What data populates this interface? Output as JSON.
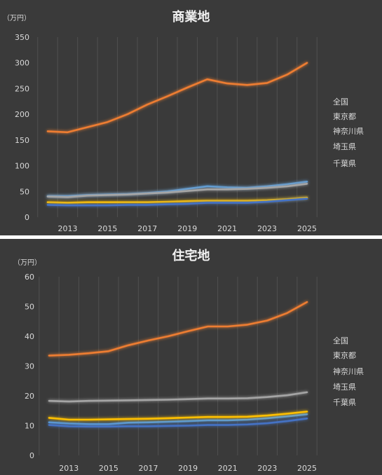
{
  "charts": [
    {
      "title": "商業地",
      "unit": "（万円）",
      "chart_data": {
        "type": "line",
        "title": "商業地",
        "ylabel": "（万円）",
        "xlabel": "",
        "x": [
          2012,
          2013,
          2014,
          2015,
          2016,
          2017,
          2018,
          2019,
          2020,
          2021,
          2022,
          2023,
          2024,
          2025
        ],
        "xticks": [
          "2013",
          "2015",
          "2017",
          "2019",
          "2021",
          "2023",
          "2025"
        ],
        "xtick_values": [
          2013,
          2015,
          2017,
          2019,
          2021,
          2023,
          2025
        ],
        "ylim": [
          0,
          350
        ],
        "yticks": [
          0,
          50,
          100,
          150,
          200,
          250,
          300,
          350
        ],
        "grid": "vertical",
        "legend": "right",
        "series": [
          {
            "name": "全国",
            "color": "#5b9bd5",
            "values": [
              41,
              41,
              43,
              44,
              45,
              47,
              50,
              55,
              60,
              58,
              57,
              60,
              64,
              69
            ]
          },
          {
            "name": "東京都",
            "color": "#ed7d31",
            "values": [
              167,
              165,
              175,
              185,
              200,
              219,
              235,
              252,
              268,
              260,
              257,
              261,
              277,
              300
            ]
          },
          {
            "name": "神奈川県",
            "color": "#a5a5a5",
            "values": [
              40,
              39,
              42,
              43,
              44,
              46,
              48,
              51,
              54,
              54,
              55,
              57,
              60,
              65
            ]
          },
          {
            "name": "埼玉県",
            "color": "#ffc000",
            "values": [
              29,
              28,
              29,
              29,
              29,
              29,
              30,
              31,
              32,
              32,
              32,
              33,
              35,
              38
            ]
          },
          {
            "name": "千葉県",
            "color": "#4472c4",
            "values": [
              24,
              23,
              23,
              23,
              24,
              24,
              25,
              26,
              28,
              28,
              28,
              30,
              33,
              36
            ]
          }
        ]
      }
    },
    {
      "title": "住宅地",
      "unit": "（万円）",
      "chart_data": {
        "type": "line",
        "title": "住宅地",
        "ylabel": "（万円）",
        "xlabel": "",
        "x": [
          2012,
          2013,
          2014,
          2015,
          2016,
          2017,
          2018,
          2019,
          2020,
          2021,
          2022,
          2023,
          2024,
          2025
        ],
        "xticks": [
          "2013",
          "2015",
          "2017",
          "2019",
          "2021",
          "2023",
          "2025"
        ],
        "xtick_values": [
          2013,
          2015,
          2017,
          2019,
          2021,
          2023,
          2025
        ],
        "ylim": [
          0,
          60
        ],
        "yticks": [
          0,
          10,
          20,
          30,
          40,
          50,
          60
        ],
        "grid": "vertical",
        "legend": "right",
        "series": [
          {
            "name": "全国",
            "color": "#5b9bd5",
            "values": [
              11.1,
              10.7,
              10.5,
              10.5,
              11.0,
              11.1,
              11.3,
              11.5,
              11.8,
              11.8,
              12.0,
              12.5,
              13.1,
              13.8
            ]
          },
          {
            "name": "東京都",
            "color": "#ed7d31",
            "values": [
              33.5,
              33.8,
              34.3,
              35.0,
              37.0,
              38.6,
              40.0,
              41.7,
              43.3,
              43.3,
              43.9,
              45.3,
              47.8,
              51.5
            ]
          },
          {
            "name": "神奈川県",
            "color": "#a5a5a5",
            "values": [
              18.3,
              18.1,
              18.3,
              18.4,
              18.5,
              18.6,
              18.7,
              18.9,
              19.1,
              19.1,
              19.2,
              19.6,
              20.2,
              21.2
            ]
          },
          {
            "name": "埼玉県",
            "color": "#ffc000",
            "values": [
              12.6,
              12.0,
              12.0,
              12.1,
              12.2,
              12.3,
              12.5,
              12.7,
              12.9,
              12.9,
              13.0,
              13.4,
              14.0,
              14.7
            ]
          },
          {
            "name": "千葉県",
            "color": "#4472c4",
            "values": [
              10.2,
              9.8,
              9.7,
              9.7,
              9.8,
              9.8,
              9.9,
              10.0,
              10.2,
              10.2,
              10.4,
              10.8,
              11.5,
              12.4
            ]
          }
        ]
      }
    }
  ]
}
